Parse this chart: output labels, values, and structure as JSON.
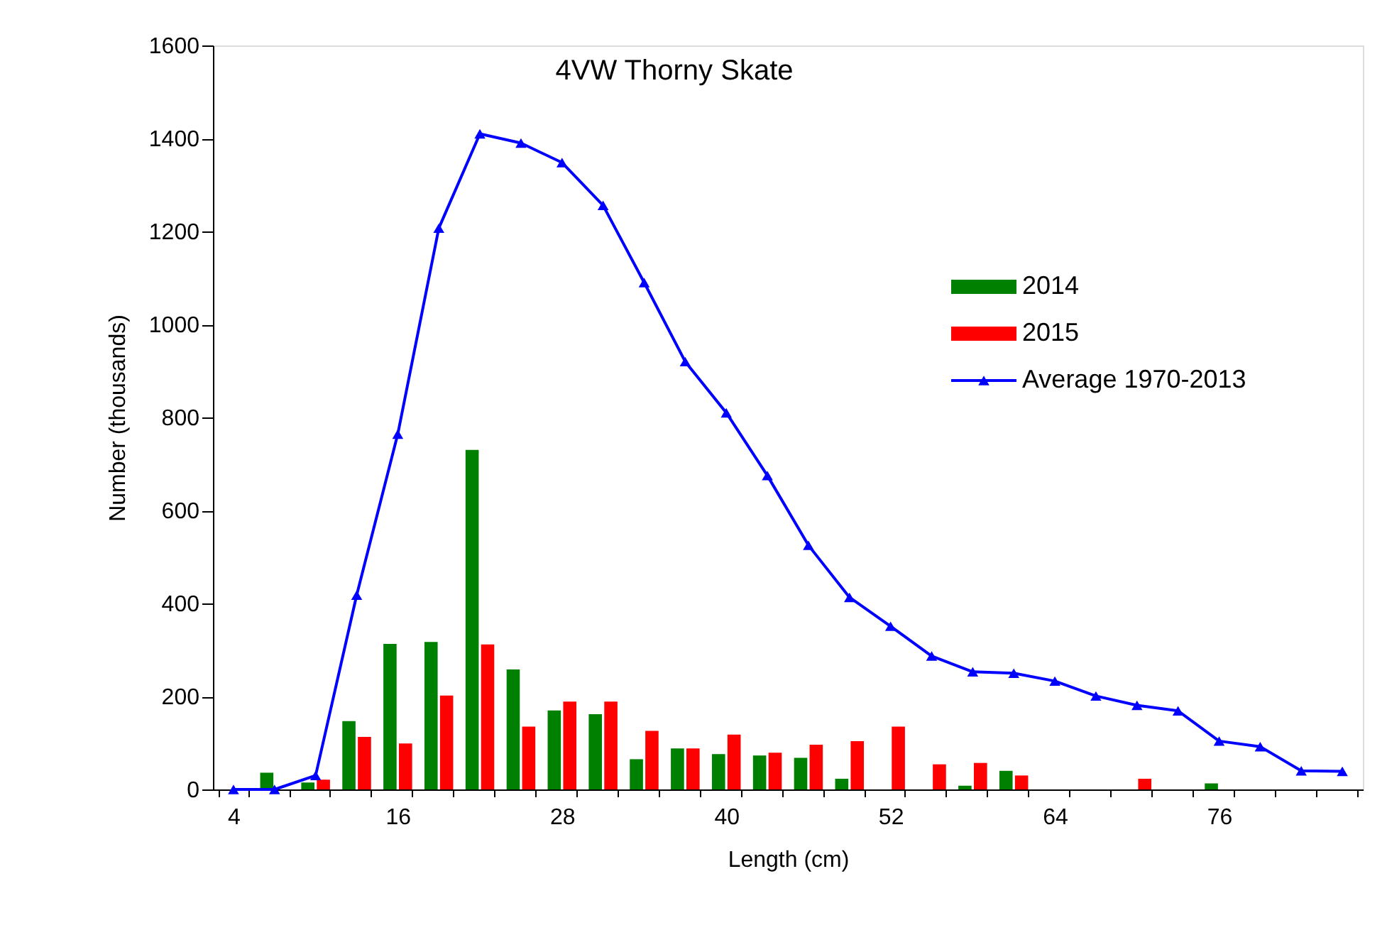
{
  "chart_data": {
    "type": "bar",
    "title": "4VW Thorny Skate",
    "xlabel": "Length (cm)",
    "ylabel": "Number (thousands)",
    "categories": [
      "4",
      null,
      null,
      null,
      "16",
      null,
      null,
      null,
      "28",
      null,
      null,
      null,
      "40",
      null,
      null,
      null,
      "52",
      null,
      null,
      null,
      "64",
      null,
      null,
      null,
      "76",
      null,
      null,
      null
    ],
    "series": [
      {
        "name": "2014",
        "color": "#008000",
        "values": [
          null,
          36,
          15,
          147,
          313,
          317,
          730,
          258,
          170,
          162,
          65,
          88,
          76,
          73,
          68,
          23,
          null,
          null,
          8,
          40,
          null,
          null,
          null,
          null,
          13,
          null,
          null,
          null
        ]
      },
      {
        "name": "2015",
        "color": "#ff0000",
        "values": [
          null,
          null,
          21,
          113,
          99,
          202,
          312,
          135,
          189,
          189,
          126,
          88,
          118,
          79,
          96,
          104,
          135,
          54,
          57,
          30,
          null,
          null,
          23,
          null,
          null,
          null,
          null,
          null
        ]
      },
      {
        "name": "Average 1970-2013",
        "type": "line",
        "color": "#0000ff",
        "values": [
          0,
          0,
          30,
          418,
          764,
          1207,
          1410,
          1390,
          1348,
          1256,
          1090,
          920,
          810,
          675,
          525,
          413,
          351,
          287,
          253,
          250,
          233,
          201,
          181,
          169,
          104,
          92,
          40,
          39
        ]
      }
    ],
    "ylim": [
      0,
      1600
    ],
    "yticks": [
      0,
      200,
      400,
      600,
      800,
      1000,
      1200,
      1400,
      1600
    ],
    "grid": false,
    "legend": "top right",
    "marker": "triangle"
  }
}
